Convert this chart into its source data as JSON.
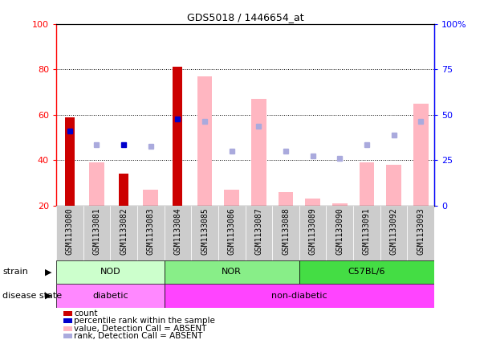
{
  "title": "GDS5018 / 1446654_at",
  "samples": [
    "GSM1133080",
    "GSM1133081",
    "GSM1133082",
    "GSM1133083",
    "GSM1133084",
    "GSM1133085",
    "GSM1133086",
    "GSM1133087",
    "GSM1133088",
    "GSM1133089",
    "GSM1133090",
    "GSM1133091",
    "GSM1133092",
    "GSM1133093"
  ],
  "count_values": [
    59,
    0,
    34,
    0,
    81,
    0,
    0,
    0,
    0,
    0,
    0,
    0,
    0,
    0
  ],
  "percentile_rank": [
    53,
    0,
    47,
    0,
    58,
    0,
    0,
    0,
    0,
    0,
    0,
    0,
    0,
    0
  ],
  "value_absent": [
    0,
    39,
    0,
    27,
    0,
    77,
    27,
    67,
    26,
    23,
    21,
    39,
    38,
    65
  ],
  "rank_absent": [
    0,
    47,
    0,
    46,
    0,
    57,
    44,
    55,
    44,
    42,
    41,
    47,
    51,
    57
  ],
  "color_count": "#CC0000",
  "color_percentile": "#0000CC",
  "color_value_absent": "#FFB6C1",
  "color_rank_absent": "#AAAADD",
  "nod_color": "#CCFFCC",
  "nor_color": "#88EE88",
  "c57_color": "#44DD44",
  "diabetic_color": "#FF88FF",
  "nondiabetic_color": "#FF44FF",
  "sample_bg": "#CCCCCC"
}
